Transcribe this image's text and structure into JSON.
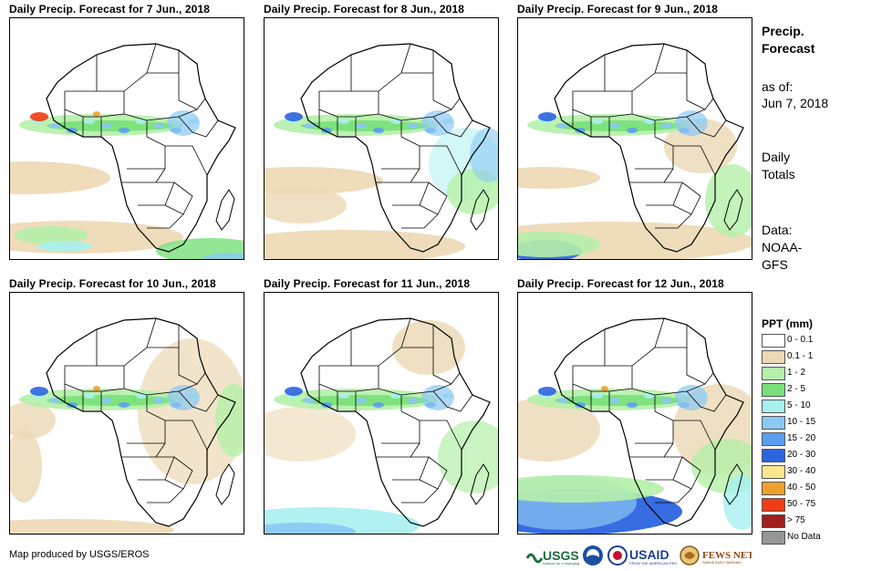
{
  "panels": [
    {
      "title": "Daily Precip. Forecast for 7 Jun., 2018"
    },
    {
      "title": "Daily Precip. Forecast for 8 Jun., 2018"
    },
    {
      "title": "Daily Precip. Forecast for 9 Jun., 2018"
    },
    {
      "title": "Daily Precip. Forecast for 10 Jun., 2018"
    },
    {
      "title": "Daily Precip. Forecast for 11 Jun., 2018"
    },
    {
      "title": "Daily Precip. Forecast for 12 Jun., 2018"
    }
  ],
  "sidebar": {
    "title_line1": "Precip.",
    "title_line2": "Forecast",
    "asof_line1": "as of:",
    "asof_line2": "Jun 7, 2018",
    "totals_line1": "Daily",
    "totals_line2": "Totals",
    "data_line1": "Data:",
    "data_line2": "NOAA-",
    "data_line3": "GFS"
  },
  "legend": {
    "title": "PPT (mm)",
    "items": [
      {
        "label": "0 - 0.1",
        "color": "#ffffff"
      },
      {
        "label": "0.1 - 1",
        "color": "#ecd8b4"
      },
      {
        "label": "1 - 2",
        "color": "#b4f0a8"
      },
      {
        "label": "2 - 5",
        "color": "#78e078"
      },
      {
        "label": "5 - 10",
        "color": "#a8f0f0"
      },
      {
        "label": "10 - 15",
        "color": "#8cc8f4"
      },
      {
        "label": "15 - 20",
        "color": "#5a9ef0"
      },
      {
        "label": "20 - 30",
        "color": "#2c64e0"
      },
      {
        "label": "30 - 40",
        "color": "#fae68c"
      },
      {
        "label": "40 - 50",
        "color": "#f0a028"
      },
      {
        "label": "50 - 75",
        "color": "#f03c14"
      },
      {
        "label": "> 75",
        "color": "#a01e1e"
      },
      {
        "label": "No Data",
        "color": "#969696"
      }
    ]
  },
  "footer": {
    "credit": "Map produced by USGS/EROS",
    "logos": [
      "USGS",
      "NOAA",
      "USAID",
      "FEWS NET"
    ]
  }
}
